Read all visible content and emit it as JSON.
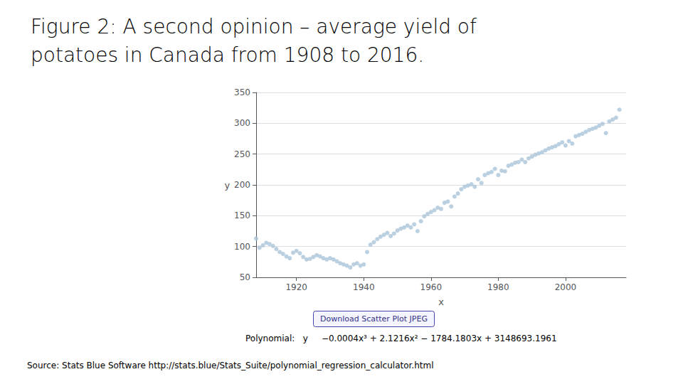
{
  "chart_data": {
    "type": "scatter",
    "title": "Figure 2: A second opinion – average yield of\npotatoes in Canada from 1908 to 2016.",
    "annotations": [
      "Download Scatter Plot JPEG",
      "Polynomial:   y     −0.0004x³ + 2.1216x² − 1784.1803x + 3148693.1961",
      "Source: Stats Blue Software http://stats.blue/Stats_Suite/polynomial_regression_calculator.html"
    ],
    "xlabel": "x",
    "ylabel": "y",
    "x": [
      1908,
      1909,
      1910,
      1911,
      1912,
      1913,
      1914,
      1915,
      1916,
      1917,
      1918,
      1919,
      1920,
      1921,
      1922,
      1923,
      1924,
      1925,
      1926,
      1927,
      1928,
      1929,
      1930,
      1931,
      1932,
      1933,
      1934,
      1935,
      1936,
      1937,
      1938,
      1939,
      1940,
      1941,
      1942,
      1943,
      1944,
      1945,
      1946,
      1947,
      1948,
      1949,
      1950,
      1951,
      1952,
      1953,
      1954,
      1955,
      1956,
      1957,
      1958,
      1959,
      1960,
      1961,
      1962,
      1963,
      1964,
      1965,
      1966,
      1967,
      1968,
      1969,
      1970,
      1971,
      1972,
      1973,
      1974,
      1975,
      1976,
      1977,
      1978,
      1979,
      1980,
      1981,
      1982,
      1983,
      1984,
      1985,
      1986,
      1987,
      1988,
      1989,
      1990,
      1991,
      1992,
      1993,
      1994,
      1995,
      1996,
      1997,
      1998,
      1999,
      2000,
      2001,
      2002,
      2003,
      2004,
      2005,
      2006,
      2007,
      2008,
      2009,
      2010,
      2011,
      2012,
      2013,
      2014,
      2015,
      2016
    ],
    "values": [
      113,
      98,
      102,
      106,
      104,
      101,
      96,
      91,
      88,
      84,
      81,
      90,
      93,
      89,
      83,
      79,
      80,
      83,
      86,
      84,
      81,
      79,
      81,
      79,
      76,
      73,
      71,
      69,
      66,
      71,
      73,
      69,
      71,
      91,
      103,
      107,
      112,
      116,
      119,
      122,
      117,
      121,
      126,
      129,
      131,
      134,
      131,
      136,
      125,
      141,
      149,
      153,
      156,
      159,
      163,
      161,
      171,
      173,
      165,
      181,
      186,
      193,
      197,
      199,
      201,
      197,
      209,
      203,
      216,
      219,
      221,
      226,
      216,
      223,
      222,
      231,
      233,
      236,
      237,
      241,
      237,
      243,
      246,
      249,
      251,
      253,
      256,
      259,
      261,
      263,
      266,
      269,
      264,
      271,
      267,
      279,
      281,
      283,
      286,
      289,
      291,
      293,
      296,
      299,
      284,
      303,
      306,
      309,
      322
    ],
    "color": "#aac4d8",
    "marker": "circle",
    "xlim": [
      1908,
      2018
    ],
    "xticks": [
      1920,
      1940,
      1960,
      1980,
      2000
    ],
    "ylim": [
      50,
      350
    ],
    "yticks": [
      50,
      100,
      150,
      200,
      250,
      300,
      350
    ],
    "grid": true
  }
}
